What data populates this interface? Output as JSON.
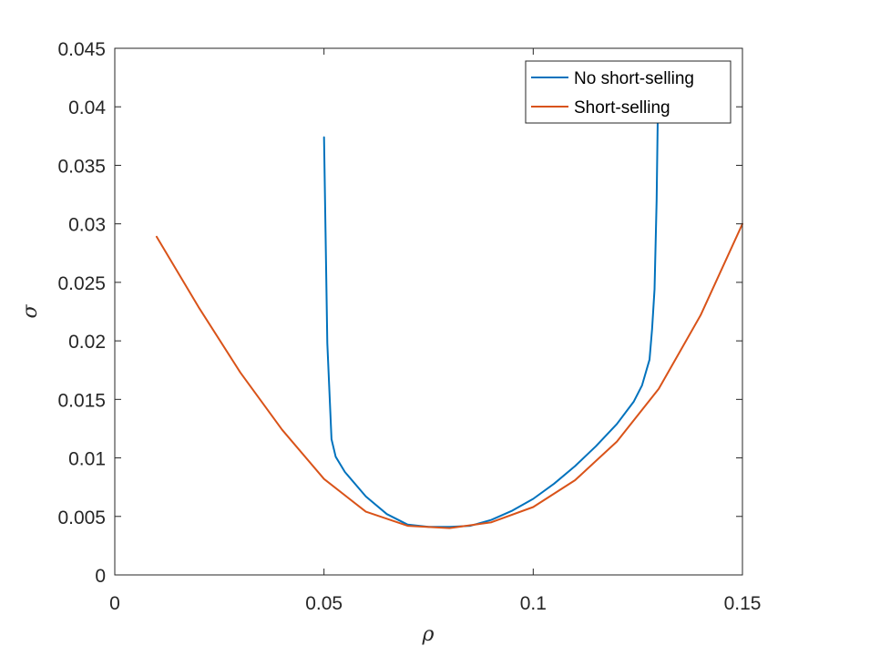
{
  "chart_data": {
    "type": "line",
    "title": "",
    "xlabel": "ρ",
    "ylabel": "σ",
    "xlim": [
      0,
      0.15
    ],
    "ylim": [
      0,
      0.045
    ],
    "xticks": [
      0,
      0.05,
      0.1,
      0.15
    ],
    "xtick_labels": [
      "0",
      "0.05",
      "0.1",
      "0.15"
    ],
    "yticks": [
      0,
      0.005,
      0.01,
      0.015,
      0.02,
      0.025,
      0.03,
      0.035,
      0.04,
      0.045
    ],
    "ytick_labels": [
      "0",
      "0.005",
      "0.01",
      "0.015",
      "0.02",
      "0.025",
      "0.03",
      "0.035",
      "0.04",
      "0.045"
    ],
    "grid": false,
    "legend_position": "top-right",
    "series": [
      {
        "name": "No short-selling",
        "color": "#0072BD",
        "x": [
          0.05,
          0.0508,
          0.0518,
          0.0528,
          0.055,
          0.06,
          0.065,
          0.07,
          0.075,
          0.08,
          0.085,
          0.09,
          0.095,
          0.1,
          0.105,
          0.11,
          0.115,
          0.12,
          0.124,
          0.126,
          0.1278,
          0.1284,
          0.129,
          0.1295,
          0.1298
        ],
        "y": [
          0.0374,
          0.0198,
          0.0116,
          0.0101,
          0.0088,
          0.0067,
          0.0052,
          0.0043,
          0.0041,
          0.0041,
          0.0042,
          0.0047,
          0.0055,
          0.0065,
          0.0078,
          0.0093,
          0.011,
          0.0129,
          0.0148,
          0.0162,
          0.0184,
          0.021,
          0.0244,
          0.032,
          0.04
        ]
      },
      {
        "name": "Short-selling",
        "color": "#D95319",
        "x": [
          0.01,
          0.02,
          0.03,
          0.04,
          0.05,
          0.06,
          0.07,
          0.08,
          0.09,
          0.1,
          0.11,
          0.12,
          0.13,
          0.14,
          0.15
        ],
        "y": [
          0.0289,
          0.0229,
          0.0173,
          0.0124,
          0.0082,
          0.0054,
          0.0042,
          0.004,
          0.0045,
          0.0058,
          0.0081,
          0.0114,
          0.0159,
          0.0222,
          0.03
        ]
      }
    ]
  }
}
